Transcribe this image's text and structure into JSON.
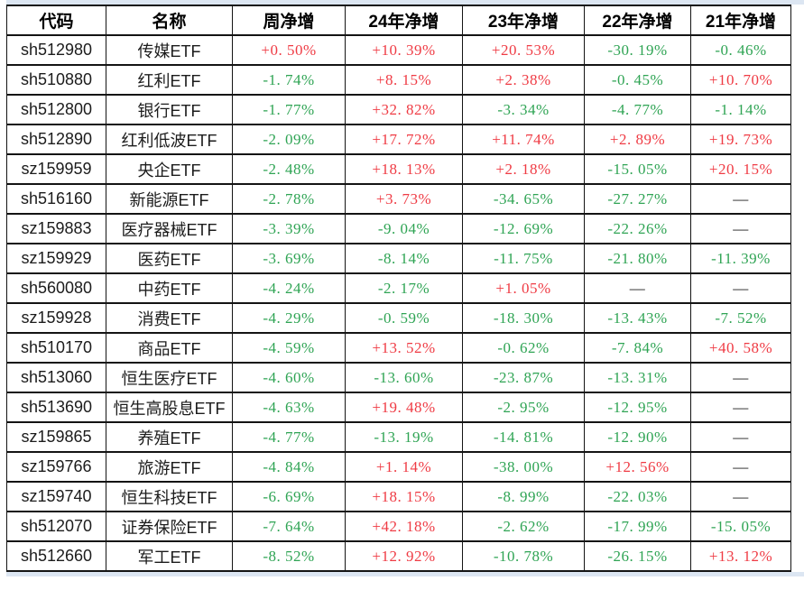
{
  "colors": {
    "positive_red": "#ef3b44",
    "negative_green": "#2fa454",
    "neutral_text": "#1a1a1a",
    "border": "#141414",
    "outer_strip": "#dce6f2"
  },
  "missing_placeholder": "—",
  "table": {
    "columns": [
      {
        "label": "代码"
      },
      {
        "label": "名称"
      },
      {
        "label": "周净增"
      },
      {
        "label": "24年净增"
      },
      {
        "label": "23年净增"
      },
      {
        "label": "22年净增"
      },
      {
        "label": "21年净增"
      }
    ],
    "rows": [
      {
        "code": "sh512980",
        "name": "传媒ETF",
        "values": [
          "+0. 50%",
          "+10. 39%",
          "+20. 53%",
          "-30. 19%",
          "-0. 46%"
        ]
      },
      {
        "code": "sh510880",
        "name": "红利ETF",
        "values": [
          "-1. 74%",
          "+8. 15%",
          "+2. 38%",
          "-0. 45%",
          "+10. 70%"
        ]
      },
      {
        "code": "sh512800",
        "name": "银行ETF",
        "values": [
          "-1. 77%",
          "+32. 82%",
          "-3. 34%",
          "-4. 77%",
          "-1. 14%"
        ]
      },
      {
        "code": "sh512890",
        "name": "红利低波ETF",
        "values": [
          "-2. 09%",
          "+17. 72%",
          "+11. 74%",
          "+2. 89%",
          "+19. 73%"
        ]
      },
      {
        "code": "sz159959",
        "name": "央企ETF",
        "values": [
          "-2. 48%",
          "+18. 13%",
          "+2. 18%",
          "-15. 05%",
          "+20. 15%"
        ]
      },
      {
        "code": "sh516160",
        "name": "新能源ETF",
        "values": [
          "-2. 78%",
          "+3. 73%",
          "-34. 65%",
          "-27. 27%",
          "—"
        ]
      },
      {
        "code": "sz159883",
        "name": "医疗器械ETF",
        "values": [
          "-3. 39%",
          "-9. 04%",
          "-12. 69%",
          "-22. 26%",
          "—"
        ]
      },
      {
        "code": "sz159929",
        "name": "医药ETF",
        "values": [
          "-3. 69%",
          "-8. 14%",
          "-11. 75%",
          "-21. 80%",
          "-11. 39%"
        ]
      },
      {
        "code": "sh560080",
        "name": "中药ETF",
        "values": [
          "-4. 24%",
          "-2. 17%",
          "+1. 05%",
          "—",
          "—"
        ]
      },
      {
        "code": "sz159928",
        "name": "消费ETF",
        "values": [
          "-4. 29%",
          "-0. 59%",
          "-18. 30%",
          "-13. 43%",
          "-7. 52%"
        ]
      },
      {
        "code": "sh510170",
        "name": "商品ETF",
        "values": [
          "-4. 59%",
          "+13. 52%",
          "-0. 62%",
          "-7. 84%",
          "+40. 58%"
        ]
      },
      {
        "code": "sh513060",
        "name": "恒生医疗ETF",
        "values": [
          "-4. 60%",
          "-13. 60%",
          "-23. 87%",
          "-13. 31%",
          "—"
        ]
      },
      {
        "code": "sh513690",
        "name": "恒生高股息ETF",
        "values": [
          "-4. 63%",
          "+19. 48%",
          "-2. 95%",
          "-12. 95%",
          "—"
        ]
      },
      {
        "code": "sz159865",
        "name": "养殖ETF",
        "values": [
          "-4. 77%",
          "-13. 19%",
          "-14. 81%",
          "-12. 90%",
          "—"
        ]
      },
      {
        "code": "sz159766",
        "name": "旅游ETF",
        "values": [
          "-4. 84%",
          "+1. 14%",
          "-38. 00%",
          "+12. 56%",
          "—"
        ]
      },
      {
        "code": "sz159740",
        "name": "恒生科技ETF",
        "values": [
          "-6. 69%",
          "+18. 15%",
          "-8. 99%",
          "-22. 03%",
          "—"
        ]
      },
      {
        "code": "sh512070",
        "name": "证券保险ETF",
        "values": [
          "-7. 64%",
          "+42. 18%",
          "-2. 62%",
          "-17. 99%",
          "-15. 05%"
        ]
      },
      {
        "code": "sh512660",
        "name": "军工ETF",
        "values": [
          "-8. 52%",
          "+12. 92%",
          "-10. 78%",
          "-26. 15%",
          "+13. 12%"
        ]
      }
    ]
  },
  "chart_data": {
    "type": "table",
    "title": "",
    "columns": [
      "代码",
      "名称",
      "周净增",
      "24年净增",
      "23年净增",
      "22年净增",
      "21年净增"
    ],
    "rows": [
      [
        "sh512980",
        "传媒ETF",
        "+0.50%",
        "+10.39%",
        "+20.53%",
        "-30.19%",
        "-0.46%"
      ],
      [
        "sh510880",
        "红利ETF",
        "-1.74%",
        "+8.15%",
        "+2.38%",
        "-0.45%",
        "+10.70%"
      ],
      [
        "sh512800",
        "银行ETF",
        "-1.77%",
        "+32.82%",
        "-3.34%",
        "-4.77%",
        "-1.14%"
      ],
      [
        "sh512890",
        "红利低波ETF",
        "-2.09%",
        "+17.72%",
        "+11.74%",
        "+2.89%",
        "+19.73%"
      ],
      [
        "sz159959",
        "央企ETF",
        "-2.48%",
        "+18.13%",
        "+2.18%",
        "-15.05%",
        "+20.15%"
      ],
      [
        "sh516160",
        "新能源ETF",
        "-2.78%",
        "+3.73%",
        "-34.65%",
        "-27.27%",
        null
      ],
      [
        "sz159883",
        "医疗器械ETF",
        "-3.39%",
        "-9.04%",
        "-12.69%",
        "-22.26%",
        null
      ],
      [
        "sz159929",
        "医药ETF",
        "-3.69%",
        "-8.14%",
        "-11.75%",
        "-21.80%",
        "-11.39%"
      ],
      [
        "sh560080",
        "中药ETF",
        "-4.24%",
        "-2.17%",
        "+1.05%",
        null,
        null
      ],
      [
        "sz159928",
        "消费ETF",
        "-4.29%",
        "-0.59%",
        "-18.30%",
        "-13.43%",
        "-7.52%"
      ],
      [
        "sh510170",
        "商品ETF",
        "-4.59%",
        "+13.52%",
        "-0.62%",
        "-7.84%",
        "+40.58%"
      ],
      [
        "sh513060",
        "恒生医疗ETF",
        "-4.60%",
        "-13.60%",
        "-23.87%",
        "-13.31%",
        null
      ],
      [
        "sh513690",
        "恒生高股息ETF",
        "-4.63%",
        "+19.48%",
        "-2.95%",
        "-12.95%",
        null
      ],
      [
        "sz159865",
        "养殖ETF",
        "-4.77%",
        "-13.19%",
        "-14.81%",
        "-12.90%",
        null
      ],
      [
        "sz159766",
        "旅游ETF",
        "-4.84%",
        "+1.14%",
        "-38.00%",
        "+12.56%",
        null
      ],
      [
        "sz159740",
        "恒生科技ETF",
        "-6.69%",
        "+18.15%",
        "-8.99%",
        "-22.03%",
        null
      ],
      [
        "sh512070",
        "证券保险ETF",
        "-7.64%",
        "+42.18%",
        "-2.62%",
        "-17.99%",
        "-15.05%"
      ],
      [
        "sh512660",
        "军工ETF",
        "-8.52%",
        "+12.92%",
        "-10.78%",
        "-26.15%",
        "+13.12%"
      ]
    ],
    "notes": "Positive values rendered red (#ef3b44), negative values green (#2fa454), missing values shown as black em dash"
  }
}
